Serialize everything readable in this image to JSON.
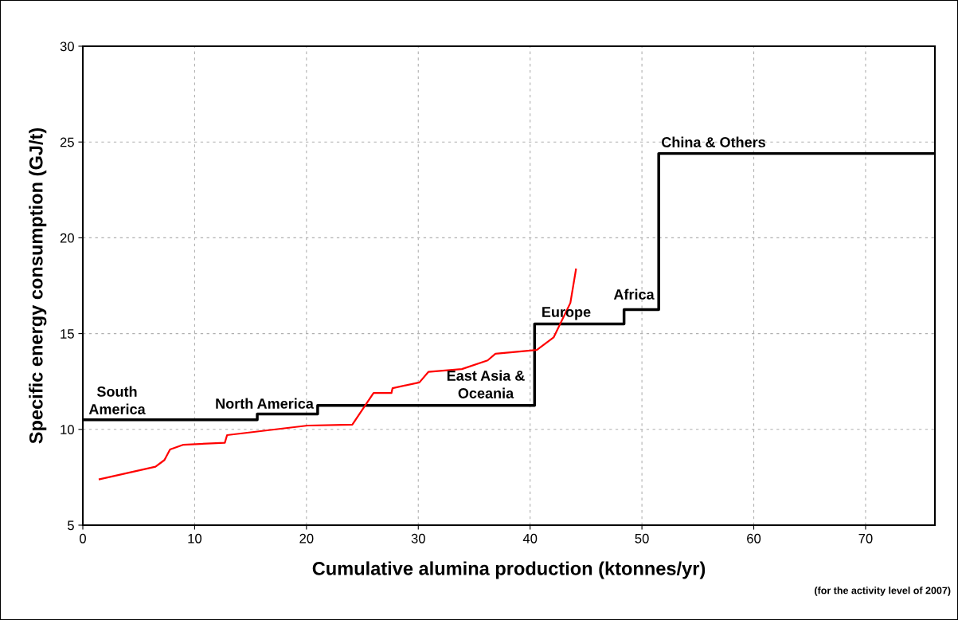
{
  "chart_data": {
    "type": "line",
    "xlabel": "Cumulative alumina production (ktonnes/yr)",
    "ylabel": "Specific energy consumption (GJ/t)",
    "series": [
      {
        "type": "step",
        "color": "#000000",
        "x": [
          0,
          15.6,
          21.0,
          40.4,
          48.4,
          51.5,
          76.2
        ],
        "values": [
          10.5,
          10.8,
          11.25,
          15.5,
          16.25,
          24.4,
          24.4
        ]
      },
      {
        "color": "#ff0000",
        "x": [
          1.5,
          6.5,
          7.3,
          7.8,
          9.0,
          12.7,
          12.9,
          20.1,
          24.1,
          26.0,
          27.6,
          27.7,
          30.1,
          30.9,
          33.9,
          36.2,
          36.9,
          40.6,
          42.1,
          43.6,
          44.1
        ],
        "values": [
          7.4,
          8.05,
          8.4,
          8.95,
          9.2,
          9.3,
          9.7,
          10.2,
          10.25,
          11.9,
          11.9,
          12.15,
          12.45,
          13.0,
          13.15,
          13.6,
          13.95,
          14.15,
          14.8,
          16.6,
          18.35
        ]
      }
    ],
    "xlim": [
      0,
      76.2
    ],
    "xticks": [
      0,
      10,
      20,
      30,
      40,
      50,
      60,
      70
    ],
    "ylim": [
      5,
      30
    ],
    "yticks": [
      5,
      10,
      15,
      20,
      25,
      30
    ],
    "grid": true,
    "line_style": "solid",
    "marker": "none",
    "annotations": [
      "South\nAmerica",
      "North America",
      "East Asia &\nOceania",
      "Europe",
      "Africa",
      "China & Others",
      "(for the activity level of 2007)"
    ]
  }
}
